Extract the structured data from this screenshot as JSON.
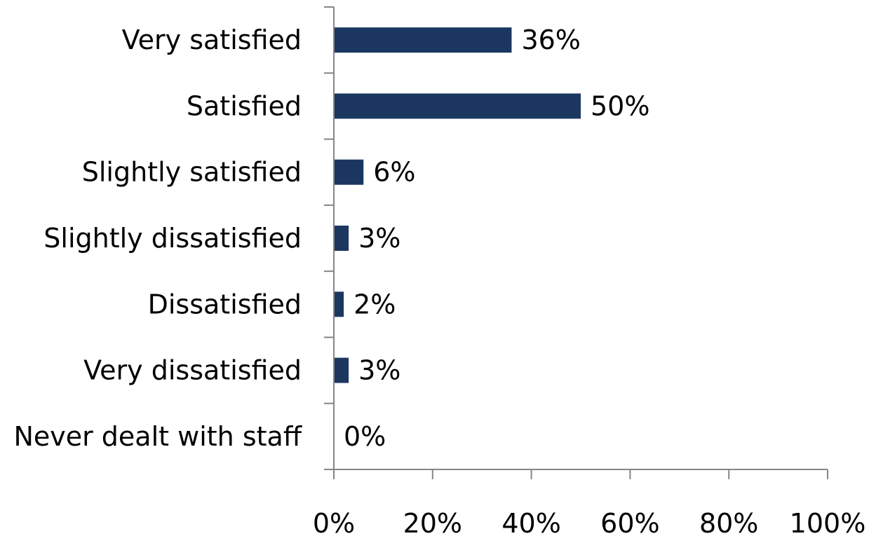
{
  "chart_data": {
    "type": "bar",
    "orientation": "horizontal",
    "categories": [
      "Very satisfied",
      "Satisfied",
      "Slightly satisfied",
      "Slightly dissatisfied",
      "Dissatisfied",
      "Very dissatisfied",
      "Never dealt with staff"
    ],
    "values": [
      36,
      50,
      6,
      3,
      2,
      3,
      0
    ],
    "data_labels": [
      "36%",
      "50%",
      "6%",
      "3%",
      "2%",
      "3%",
      "0%"
    ],
    "xlim": [
      0,
      100
    ],
    "xticks": [
      0,
      20,
      40,
      60,
      80,
      100
    ],
    "xtick_labels": [
      "0%",
      "20%",
      "40%",
      "60%",
      "80%",
      "100%"
    ],
    "grid": false,
    "legend": "none",
    "colors": {
      "bar": "#1b3760",
      "axis": "#868686",
      "text": "#000000"
    }
  }
}
